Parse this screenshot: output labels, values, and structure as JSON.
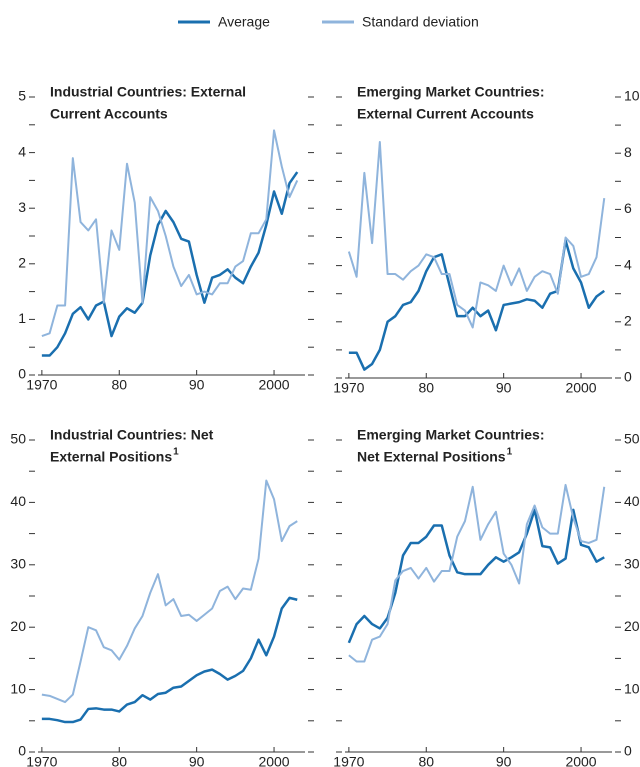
{
  "chart_data": [
    {
      "type": "line",
      "title": [
        "Industrial Countries: External",
        "Current Accounts"
      ],
      "yaxis_side": "left",
      "x": [
        1970,
        1971,
        1972,
        1973,
        1974,
        1975,
        1976,
        1977,
        1978,
        1979,
        1980,
        1981,
        1982,
        1983,
        1984,
        1985,
        1986,
        1987,
        1988,
        1989,
        1990,
        1991,
        1992,
        1993,
        1994,
        1995,
        1996,
        1997,
        1998,
        1999,
        2000,
        2001,
        2002,
        2003
      ],
      "xlim": [
        1969.5,
        2004
      ],
      "xticks": [
        1970,
        {
          "value": 1980,
          "label": "80"
        },
        {
          "value": 1990,
          "label": "90"
        },
        2000
      ],
      "ylim": [
        0,
        5
      ],
      "yticks": [
        0,
        1,
        2,
        3,
        4,
        5
      ],
      "yminorticks": [
        0.5,
        1.5,
        2.5,
        3.5,
        4.5
      ],
      "series": [
        {
          "name": "Average",
          "color": "#1a6faf",
          "values": [
            0.35,
            0.35,
            0.5,
            0.75,
            1.1,
            1.22,
            1.0,
            1.25,
            1.32,
            0.7,
            1.05,
            1.2,
            1.12,
            1.3,
            2.15,
            2.7,
            2.95,
            2.75,
            2.45,
            2.4,
            1.8,
            1.3,
            1.75,
            1.8,
            1.9,
            1.75,
            1.65,
            1.95,
            2.2,
            2.7,
            3.3,
            2.9,
            3.45,
            3.65
          ]
        },
        {
          "name": "Standard deviation",
          "color": "#8fb4dc",
          "values": [
            0.7,
            0.75,
            1.25,
            1.25,
            3.9,
            2.75,
            2.6,
            2.8,
            1.3,
            2.6,
            2.25,
            3.8,
            3.1,
            1.3,
            3.2,
            2.95,
            2.5,
            1.95,
            1.6,
            1.8,
            1.45,
            1.5,
            1.45,
            1.65,
            1.65,
            1.95,
            2.05,
            2.55,
            2.55,
            2.8,
            4.4,
            3.75,
            3.2,
            3.5
          ]
        }
      ]
    },
    {
      "type": "line",
      "title": [
        "Emerging Market Countries:",
        "External Current Accounts"
      ],
      "yaxis_side": "right",
      "x": [
        1970,
        1971,
        1972,
        1973,
        1974,
        1975,
        1976,
        1977,
        1978,
        1979,
        1980,
        1981,
        1982,
        1983,
        1984,
        1985,
        1986,
        1987,
        1988,
        1989,
        1990,
        1991,
        1992,
        1993,
        1994,
        1995,
        1996,
        1997,
        1998,
        1999,
        2000,
        2001,
        2002,
        2003
      ],
      "xlim": [
        1969.5,
        2004
      ],
      "xticks": [
        1970,
        {
          "value": 1980,
          "label": "80"
        },
        {
          "value": 1990,
          "label": "90"
        },
        2000
      ],
      "ylim": [
        0,
        10
      ],
      "yticks": [
        0,
        2,
        4,
        6,
        8,
        10
      ],
      "yminorticks": [
        1,
        3,
        5,
        7,
        9
      ],
      "series": [
        {
          "name": "Average",
          "color": "#1a6faf",
          "values": [
            0.9,
            0.9,
            0.3,
            0.5,
            1.0,
            2.0,
            2.2,
            2.6,
            2.7,
            3.1,
            3.8,
            4.3,
            4.4,
            3.3,
            2.2,
            2.2,
            2.5,
            2.2,
            2.4,
            1.7,
            2.6,
            2.65,
            2.7,
            2.8,
            2.75,
            2.5,
            3.0,
            3.1,
            4.9,
            3.9,
            3.4,
            2.5,
            2.9,
            3.1
          ]
        },
        {
          "name": "Standard deviation",
          "color": "#8fb4dc",
          "values": [
            4.5,
            3.6,
            7.3,
            4.8,
            8.4,
            3.7,
            3.7,
            3.5,
            3.8,
            4.0,
            4.4,
            4.3,
            3.7,
            3.7,
            2.6,
            2.4,
            1.8,
            3.4,
            3.3,
            3.1,
            4.0,
            3.3,
            3.9,
            3.1,
            3.6,
            3.8,
            3.7,
            3.0,
            5.0,
            4.7,
            3.6,
            3.7,
            4.3,
            6.4
          ]
        }
      ]
    },
    {
      "type": "line",
      "title": [
        "Industrial Countries: Net",
        "External Positions"
      ],
      "footnote_mark": "1",
      "yaxis_side": "left",
      "x": [
        1970,
        1971,
        1972,
        1973,
        1974,
        1975,
        1976,
        1977,
        1978,
        1979,
        1980,
        1981,
        1982,
        1983,
        1984,
        1985,
        1986,
        1987,
        1988,
        1989,
        1990,
        1991,
        1992,
        1993,
        1994,
        1995,
        1996,
        1997,
        1998,
        1999,
        2000,
        2001,
        2002,
        2003
      ],
      "xlim": [
        1969.5,
        2004
      ],
      "xticks": [
        1970,
        {
          "value": 1980,
          "label": "80"
        },
        {
          "value": 1990,
          "label": "90"
        },
        2000
      ],
      "ylim": [
        0,
        50
      ],
      "yticks": [
        0,
        10,
        20,
        30,
        40,
        50
      ],
      "yminorticks": [
        5,
        15,
        25,
        35,
        45
      ],
      "series": [
        {
          "name": "Average",
          "color": "#1a6faf",
          "values": [
            5.3,
            5.3,
            5.1,
            4.8,
            4.8,
            5.2,
            6.9,
            7.0,
            6.8,
            6.8,
            6.5,
            7.6,
            8.0,
            9.1,
            8.4,
            9.3,
            9.5,
            10.3,
            10.5,
            11.4,
            12.3,
            12.9,
            13.2,
            12.5,
            11.6,
            12.2,
            13.0,
            15.0,
            18.0,
            15.5,
            18.5,
            23.0,
            24.7,
            24.4
          ]
        },
        {
          "name": "Standard deviation",
          "color": "#8fb4dc",
          "values": [
            9.2,
            9.0,
            8.5,
            8.0,
            9.2,
            14.5,
            20.0,
            19.5,
            16.8,
            16.3,
            14.8,
            17.0,
            19.8,
            21.8,
            25.5,
            28.5,
            23.5,
            24.5,
            21.8,
            22.0,
            21.0,
            22.0,
            23.0,
            25.8,
            26.5,
            24.5,
            26.2,
            26.0,
            31.0,
            43.5,
            40.5,
            33.8,
            36.2,
            37.0
          ]
        }
      ]
    },
    {
      "type": "line",
      "title": [
        "Emerging Market Countries:",
        "Net External Positions"
      ],
      "footnote_mark": "1",
      "yaxis_side": "right",
      "x": [
        1970,
        1971,
        1972,
        1973,
        1974,
        1975,
        1976,
        1977,
        1978,
        1979,
        1980,
        1981,
        1982,
        1983,
        1984,
        1985,
        1986,
        1987,
        1988,
        1989,
        1990,
        1991,
        1992,
        1993,
        1994,
        1995,
        1996,
        1997,
        1998,
        1999,
        2000,
        2001,
        2002,
        2003
      ],
      "xlim": [
        1969.5,
        2004
      ],
      "xticks": [
        1970,
        {
          "value": 1980,
          "label": "80"
        },
        {
          "value": 1990,
          "label": "90"
        },
        2000
      ],
      "ylim": [
        0,
        50
      ],
      "yticks": [
        0,
        10,
        20,
        30,
        40,
        50
      ],
      "yminorticks": [
        5,
        15,
        25,
        35,
        45
      ],
      "series": [
        {
          "name": "Average",
          "color": "#1a6faf",
          "values": [
            17.5,
            20.5,
            21.8,
            20.5,
            19.8,
            21.5,
            25.5,
            31.5,
            33.5,
            33.5,
            34.5,
            36.3,
            36.3,
            31.5,
            28.8,
            28.5,
            28.5,
            28.5,
            30.0,
            31.2,
            30.5,
            31.2,
            32.0,
            35.0,
            38.8,
            33.0,
            32.8,
            30.2,
            31.0,
            38.8,
            33.2,
            32.8,
            30.5,
            31.2
          ]
        },
        {
          "name": "Standard deviation",
          "color": "#8fb4dc",
          "values": [
            15.5,
            14.5,
            14.5,
            18.0,
            18.5,
            20.5,
            27.5,
            29.0,
            29.5,
            27.8,
            29.5,
            27.3,
            29.0,
            29.0,
            34.5,
            37.0,
            42.5,
            34.0,
            36.5,
            38.5,
            31.8,
            30.0,
            27.0,
            36.5,
            39.5,
            36.0,
            35.0,
            35.0,
            42.8,
            37.5,
            33.8,
            33.5,
            34.0,
            42.5
          ]
        }
      ]
    }
  ]
}
